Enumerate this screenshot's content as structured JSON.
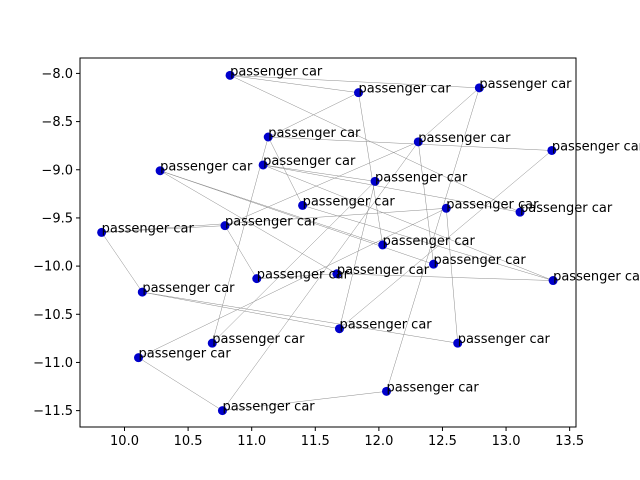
{
  "chart_data": {
    "type": "scatter",
    "title": "",
    "xlabel": "",
    "ylabel": "",
    "xlim": [
      9.65,
      13.55
    ],
    "ylim": [
      -11.67,
      -7.84
    ],
    "xticks": [
      10.0,
      10.5,
      11.0,
      11.5,
      12.0,
      12.5,
      13.0,
      13.5
    ],
    "xtick_labels": [
      "10.0",
      "10.5",
      "11.0",
      "11.5",
      "12.0",
      "12.5",
      "13.0",
      "13.5"
    ],
    "yticks": [
      -8.0,
      -8.5,
      -9.0,
      -9.5,
      -10.0,
      -10.5,
      -11.0,
      -11.5
    ],
    "ytick_labels": [
      "−8.0",
      "−8.5",
      "−9.0",
      "−9.5",
      "−10.0",
      "−10.5",
      "−11.0",
      "−11.5"
    ],
    "grid": false,
    "point_color": "#0000cc",
    "edge_color": "#8c8c8c",
    "points": [
      {
        "x": 10.83,
        "y": -8.02,
        "label": "passenger car"
      },
      {
        "x": 11.84,
        "y": -8.2,
        "label": "passenger car"
      },
      {
        "x": 12.79,
        "y": -8.15,
        "label": "passenger car"
      },
      {
        "x": 11.13,
        "y": -8.66,
        "label": "passenger car"
      },
      {
        "x": 12.31,
        "y": -8.71,
        "label": "passenger car"
      },
      {
        "x": 13.36,
        "y": -8.8,
        "label": "passenger car"
      },
      {
        "x": 10.28,
        "y": -9.01,
        "label": "passenger car"
      },
      {
        "x": 11.09,
        "y": -8.95,
        "label": "passenger car"
      },
      {
        "x": 11.97,
        "y": -9.12,
        "label": "passenger car"
      },
      {
        "x": 11.4,
        "y": -9.37,
        "label": "passenger car"
      },
      {
        "x": 12.53,
        "y": -9.4,
        "label": "passenger car"
      },
      {
        "x": 13.11,
        "y": -9.44,
        "label": "passenger car"
      },
      {
        "x": 10.79,
        "y": -9.58,
        "label": "passenger car"
      },
      {
        "x": 9.82,
        "y": -9.65,
        "label": "passenger car"
      },
      {
        "x": 12.03,
        "y": -9.78,
        "label": "passenger car"
      },
      {
        "x": 12.43,
        "y": -9.98,
        "label": "passenger car"
      },
      {
        "x": 11.67,
        "y": -10.08,
        "label": "passenger car"
      },
      {
        "x": 11.04,
        "y": -10.13,
        "label": "passenger car"
      },
      {
        "x": 13.37,
        "y": -10.15,
        "label": "passenger car"
      },
      {
        "x": 10.14,
        "y": -10.27,
        "label": "passenger car"
      },
      {
        "x": 11.69,
        "y": -10.65,
        "label": "passenger car"
      },
      {
        "x": 10.69,
        "y": -10.8,
        "label": "passenger car"
      },
      {
        "x": 12.62,
        "y": -10.8,
        "label": "passenger car"
      },
      {
        "x": 10.11,
        "y": -10.95,
        "label": "passenger car"
      },
      {
        "x": 12.06,
        "y": -11.3,
        "label": "passenger car"
      },
      {
        "x": 10.77,
        "y": -11.5,
        "label": "passenger car"
      }
    ],
    "edges": [
      [
        0,
        1
      ],
      [
        0,
        2
      ],
      [
        1,
        3
      ],
      [
        3,
        5
      ],
      [
        0,
        11
      ],
      [
        2,
        4
      ],
      [
        2,
        24
      ],
      [
        4,
        12
      ],
      [
        4,
        15
      ],
      [
        6,
        14
      ],
      [
        6,
        15
      ],
      [
        7,
        8
      ],
      [
        8,
        20
      ],
      [
        8,
        21
      ],
      [
        9,
        18
      ],
      [
        3,
        9
      ],
      [
        10,
        13
      ],
      [
        10,
        23
      ],
      [
        12,
        13
      ],
      [
        12,
        17
      ],
      [
        13,
        19
      ],
      [
        16,
        18
      ],
      [
        17,
        16
      ],
      [
        19,
        20
      ],
      [
        19,
        22
      ],
      [
        23,
        25
      ],
      [
        25,
        4
      ],
      [
        21,
        3
      ],
      [
        6,
        16
      ],
      [
        14,
        1
      ],
      [
        11,
        7
      ],
      [
        22,
        10
      ],
      [
        24,
        25
      ],
      [
        7,
        18
      ],
      [
        20,
        5
      ]
    ]
  }
}
